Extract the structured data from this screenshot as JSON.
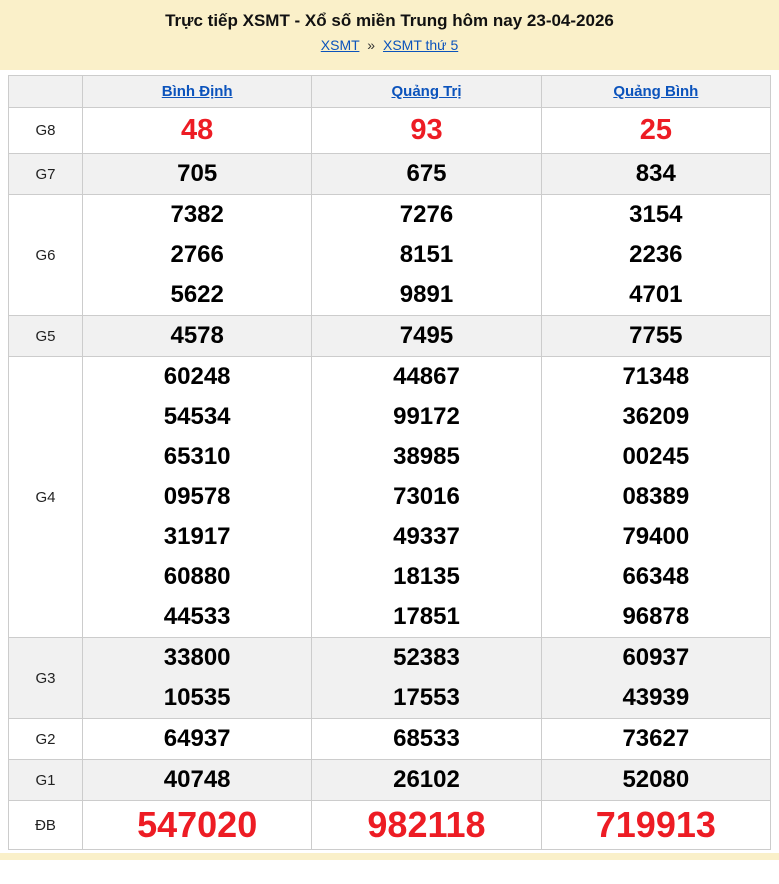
{
  "page": {
    "title": "Trực tiếp XSMT - Xổ số miền Trung hôm nay 23-04-2026",
    "breadcrumb": {
      "items": [
        {
          "label": "XSMT"
        },
        {
          "label": "XSMT thứ 5"
        }
      ],
      "separator": "»"
    }
  },
  "table": {
    "columns": [
      "Bình Định",
      "Quảng Trị",
      "Quảng Bình"
    ],
    "rows": [
      {
        "label": "G8",
        "style": "g8",
        "values": [
          [
            "48"
          ],
          [
            "93"
          ],
          [
            "25"
          ]
        ]
      },
      {
        "label": "G7",
        "style": "",
        "values": [
          [
            "705"
          ],
          [
            "675"
          ],
          [
            "834"
          ]
        ]
      },
      {
        "label": "G6",
        "style": "",
        "values": [
          [
            "7382",
            "2766",
            "5622"
          ],
          [
            "7276",
            "8151",
            "9891"
          ],
          [
            "3154",
            "2236",
            "4701"
          ]
        ]
      },
      {
        "label": "G5",
        "style": "",
        "values": [
          [
            "4578"
          ],
          [
            "7495"
          ],
          [
            "7755"
          ]
        ]
      },
      {
        "label": "G4",
        "style": "",
        "values": [
          [
            "60248",
            "54534",
            "65310",
            "09578",
            "31917",
            "60880",
            "44533"
          ],
          [
            "44867",
            "99172",
            "38985",
            "73016",
            "49337",
            "18135",
            "17851"
          ],
          [
            "71348",
            "36209",
            "00245",
            "08389",
            "79400",
            "66348",
            "96878"
          ]
        ]
      },
      {
        "label": "G3",
        "style": "",
        "values": [
          [
            "33800",
            "10535"
          ],
          [
            "52383",
            "17553"
          ],
          [
            "60937",
            "43939"
          ]
        ]
      },
      {
        "label": "G2",
        "style": "",
        "values": [
          [
            "64937"
          ],
          [
            "68533"
          ],
          [
            "73627"
          ]
        ]
      },
      {
        "label": "G1",
        "style": "",
        "values": [
          [
            "40748"
          ],
          [
            "26102"
          ],
          [
            "52080"
          ]
        ]
      },
      {
        "label": "ĐB",
        "style": "db",
        "values": [
          [
            "547020"
          ],
          [
            "982118"
          ],
          [
            "719913"
          ]
        ]
      }
    ]
  },
  "colors": {
    "accent_red": "#ed1c24",
    "link_blue": "#0b53bc",
    "header_cream": "#faf0c9",
    "row_alt_gray": "#f1f1f1",
    "table_border": "#cccccc"
  }
}
